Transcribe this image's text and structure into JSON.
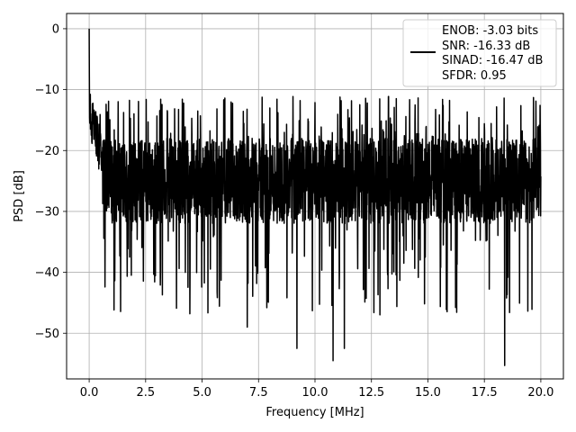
{
  "chart_data": {
    "type": "line",
    "title": "",
    "xlabel": "Frequency [MHz]",
    "ylabel": "PSD [dB]",
    "xlim": [
      -1.0,
      21.0
    ],
    "ylim": [
      -57.5,
      2.5
    ],
    "xticks": [
      0.0,
      2.5,
      5.0,
      7.5,
      10.0,
      12.5,
      15.0,
      17.5,
      20.0
    ],
    "xtick_labels": [
      "0.0",
      "2.5",
      "5.0",
      "7.5",
      "10.0",
      "12.5",
      "15.0",
      "17.5",
      "20.0"
    ],
    "yticks": [
      0,
      -10,
      -20,
      -30,
      -40,
      -50
    ],
    "ytick_labels": [
      "0",
      "−10",
      "−20",
      "−30",
      "−40",
      "−50"
    ],
    "grid": true,
    "legend_position": "top-right",
    "series": [
      {
        "name": "",
        "color": "#000000",
        "x_range": [
          0.0,
          20.0
        ],
        "noise_floor_db": -25,
        "noise_range_db": [
          -55,
          -10
        ],
        "peak": {
          "x": 0.0,
          "y": 0
        },
        "notable_minima": [
          {
            "x": 7.0,
            "y": -49
          },
          {
            "x": 9.2,
            "y": -52.5
          },
          {
            "x": 10.8,
            "y": -54.5
          },
          {
            "x": 11.3,
            "y": -52.5
          },
          {
            "x": 18.4,
            "y": -55.3
          }
        ]
      }
    ],
    "legend_entries": [
      "ENOB: -3.03 bits",
      "SNR: -16.33 dB",
      "SINAD: -16.47 dB",
      "SFDR: 0.95"
    ]
  }
}
